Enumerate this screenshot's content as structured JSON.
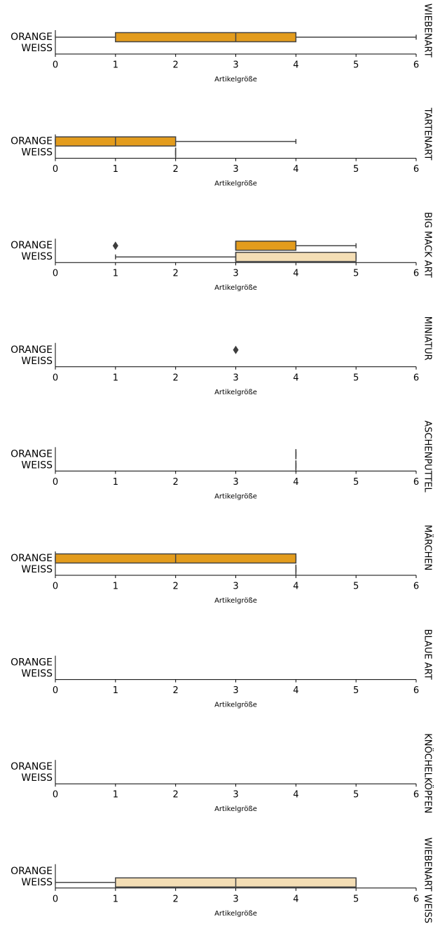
{
  "chart_data": [
    {
      "type": "box",
      "title": "WIEBENART",
      "xlabel": "Artikelgröße",
      "categories": [
        "ORANGE",
        "WEISS"
      ],
      "colors": [
        "#e39c1d",
        "#f4deb5"
      ],
      "xlim": [
        0,
        6
      ],
      "xticks": [
        0,
        1,
        2,
        3,
        4,
        5,
        6
      ],
      "boxes": [
        {
          "min": 0,
          "q1": 1,
          "median": 3,
          "q3": 4,
          "max": 6,
          "outliers": []
        },
        null
      ]
    },
    {
      "type": "box",
      "title": "TARTENART",
      "xlabel": "Artikelgröße",
      "categories": [
        "ORANGE",
        "WEISS"
      ],
      "colors": [
        "#e39c1d",
        "#f4deb5"
      ],
      "xlim": [
        0,
        6
      ],
      "xticks": [
        0,
        1,
        2,
        3,
        4,
        5,
        6
      ],
      "boxes": [
        {
          "min": 0,
          "q1": 0,
          "median": 1,
          "q3": 2,
          "max": 4,
          "outliers": []
        },
        {
          "min": 2,
          "q1": 2,
          "median": 2,
          "q3": 2,
          "max": 2,
          "outliers": []
        }
      ]
    },
    {
      "type": "box",
      "title": "BIG MACK ART",
      "xlabel": "Artikelgröße",
      "categories": [
        "ORANGE",
        "WEISS"
      ],
      "colors": [
        "#e39c1d",
        "#f4deb5"
      ],
      "xlim": [
        0,
        6
      ],
      "xticks": [
        0,
        1,
        2,
        3,
        4,
        5,
        6
      ],
      "boxes": [
        {
          "min": 3,
          "q1": 3,
          "median": 3,
          "q3": 4,
          "max": 5,
          "outliers": [
            1
          ]
        },
        {
          "min": 1,
          "q1": 3,
          "median": 3,
          "q3": 5,
          "max": 5,
          "outliers": []
        }
      ]
    },
    {
      "type": "box",
      "title": "MINIATUR",
      "xlabel": "Artikelgröße",
      "categories": [
        "ORANGE",
        "WEISS"
      ],
      "colors": [
        "#e39c1d",
        "#f4deb5"
      ],
      "xlim": [
        0,
        6
      ],
      "xticks": [
        0,
        1,
        2,
        3,
        4,
        5,
        6
      ],
      "boxes": [
        {
          "min": null,
          "q1": null,
          "median": null,
          "q3": null,
          "max": null,
          "outliers": [
            3
          ]
        },
        null
      ]
    },
    {
      "type": "box",
      "title": "ASCHENPUTTEL",
      "xlabel": "Artikelgröße",
      "categories": [
        "ORANGE",
        "WEISS"
      ],
      "colors": [
        "#e39c1d",
        "#f4deb5"
      ],
      "xlim": [
        0,
        6
      ],
      "xticks": [
        0,
        1,
        2,
        3,
        4,
        5,
        6
      ],
      "boxes": [
        {
          "min": 4,
          "q1": 4,
          "median": 4,
          "q3": 4,
          "max": 4,
          "outliers": []
        },
        {
          "min": 4,
          "q1": 4,
          "median": 4,
          "q3": 4,
          "max": 4,
          "outliers": []
        }
      ]
    },
    {
      "type": "box",
      "title": "MÄRCHEN",
      "xlabel": "Artikelgröße",
      "categories": [
        "ORANGE",
        "WEISS"
      ],
      "colors": [
        "#e39c1d",
        "#f4deb5"
      ],
      "xlim": [
        0,
        6
      ],
      "xticks": [
        0,
        1,
        2,
        3,
        4,
        5,
        6
      ],
      "boxes": [
        {
          "min": 0,
          "q1": 0,
          "median": 2,
          "q3": 4,
          "max": 4,
          "outliers": []
        },
        {
          "min": 4,
          "q1": 4,
          "median": 4,
          "q3": 4,
          "max": 4,
          "outliers": []
        }
      ]
    },
    {
      "type": "box",
      "title": "BLAUE ART",
      "xlabel": "Artikelgröße",
      "categories": [
        "ORANGE",
        "WEISS"
      ],
      "colors": [
        "#e39c1d",
        "#f4deb5"
      ],
      "xlim": [
        0,
        6
      ],
      "xticks": [
        0,
        1,
        2,
        3,
        4,
        5,
        6
      ],
      "boxes": [
        null,
        null
      ]
    },
    {
      "type": "box",
      "title": "KNÖCHELKÖPFEN",
      "xlabel": "Artikelgröße",
      "categories": [
        "ORANGE",
        "WEISS"
      ],
      "colors": [
        "#e39c1d",
        "#f4deb5"
      ],
      "xlim": [
        0,
        6
      ],
      "xticks": [
        0,
        1,
        2,
        3,
        4,
        5,
        6
      ],
      "boxes": [
        null,
        null
      ]
    },
    {
      "type": "box",
      "title": "WIEBENART WEISS",
      "xlabel": "Artikelgröße",
      "categories": [
        "ORANGE",
        "WEISS"
      ],
      "colors": [
        "#e39c1d",
        "#f4deb5"
      ],
      "xlim": [
        0,
        6
      ],
      "xticks": [
        0,
        1,
        2,
        3,
        4,
        5,
        6
      ],
      "boxes": [
        null,
        {
          "min": 0,
          "q1": 1,
          "median": 3,
          "q3": 5,
          "max": 5,
          "outliers": []
        }
      ]
    }
  ]
}
